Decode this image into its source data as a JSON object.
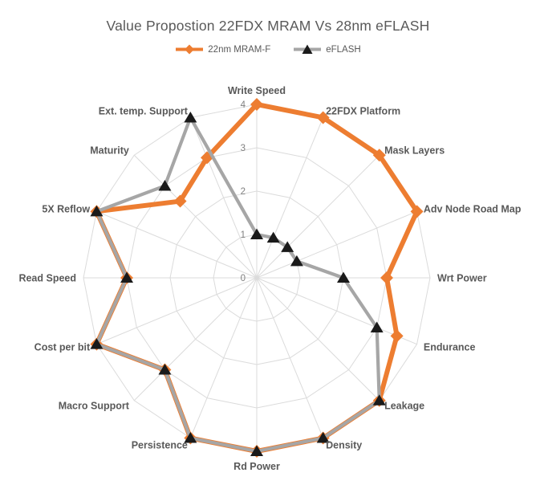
{
  "chart_data": {
    "type": "radar",
    "title": "Value Propostion 22FDX MRAM Vs 28nm eFLASH",
    "categories": [
      "Write Speed",
      "22FDX Platform",
      "Mask Layers",
      "Adv Node Road Map",
      "Wrt Power",
      "Endurance",
      "Leakage",
      "Density",
      "Rd Power",
      "Persistence",
      "Macro Support",
      "Cost per bit",
      "Read Speed",
      "5X Reflow",
      "Maturity",
      "Ext. temp. Support"
    ],
    "series": [
      {
        "name": "22nm MRAM-F",
        "color": "#ED7D31",
        "marker": "diamond",
        "marker_color": "#ED7D31",
        "values": [
          4,
          4,
          4,
          4,
          3,
          3.5,
          4,
          4,
          4,
          4,
          3,
          4,
          3,
          4,
          2.5,
          3
        ]
      },
      {
        "name": "eFLASH",
        "color": "#A6A6A6",
        "marker": "triangle",
        "marker_color": "#1A1A1A",
        "values": [
          1,
          1,
          1,
          1,
          2,
          3,
          4,
          4,
          4,
          4,
          3,
          4,
          3,
          4,
          3,
          4
        ]
      }
    ],
    "radial_axis": {
      "min": 0,
      "max": 4,
      "ticks": [
        "0",
        "1",
        "2",
        "3",
        "4"
      ]
    },
    "grid": {
      "shape": "polygon",
      "on": true,
      "color": "#DBDBDB"
    },
    "legend_position": "top",
    "label_color": "#595959",
    "tick_color": "#7F7F7F"
  }
}
